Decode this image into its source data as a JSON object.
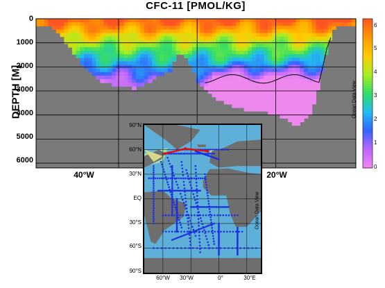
{
  "chart_data": [
    {
      "type": "heatmap",
      "title": "CFC-11 [PMOL/KG]",
      "ylabel": "DEPTH [M]",
      "xlabel": "",
      "y_ticks": [
        "0",
        "1000",
        "2000",
        "3000",
        "4000",
        "5000",
        "6000"
      ],
      "ylim": [
        6200,
        0
      ],
      "x_ticks": [
        "40°W",
        "20°W"
      ],
      "colorbar": {
        "ticks": [
          "0",
          "1",
          "2",
          "3",
          "4",
          "5",
          "6"
        ],
        "range": [
          0,
          6.5
        ],
        "credit": "Ocean Data View",
        "colors": [
          "#ee88ee",
          "#bb66ff",
          "#3366ff",
          "#22bbee",
          "#33dd66",
          "#aaee22",
          "#ffcc00",
          "#ff9900",
          "#ff5522"
        ]
      },
      "background_color": "#7a7a7a",
      "contour_level": 1.0,
      "seafloor_depth_m": [
        [
          -50.0,
          300
        ],
        [
          -48.0,
          380
        ],
        [
          -46.5,
          1100
        ],
        [
          -45.0,
          1750
        ],
        [
          -43.5,
          2300
        ],
        [
          -42.0,
          2650
        ],
        [
          -40.0,
          2800
        ],
        [
          -38.0,
          2880
        ],
        [
          -36.5,
          2700
        ],
        [
          -35.5,
          2500
        ],
        [
          -34.5,
          2300
        ],
        [
          -33.5,
          2200
        ],
        [
          -32.5,
          1400
        ],
        [
          -31.5,
          1600
        ],
        [
          -30.5,
          2200
        ],
        [
          -29.5,
          2850
        ],
        [
          -28.5,
          3050
        ],
        [
          -27.5,
          3300
        ],
        [
          -26.5,
          3500
        ],
        [
          -25.5,
          3650
        ],
        [
          -24.5,
          3750
        ],
        [
          -23.0,
          3850
        ],
        [
          -21.5,
          3900
        ],
        [
          -20.0,
          3950
        ],
        [
          -18.5,
          4200
        ],
        [
          -17.5,
          4450
        ],
        [
          -16.5,
          4300
        ],
        [
          -15.5,
          3900
        ],
        [
          -14.5,
          2800
        ],
        [
          -13.5,
          1300
        ],
        [
          -12.5,
          400
        ],
        [
          -11.5,
          250
        ],
        [
          -10.0,
          250
        ]
      ]
    },
    {
      "type": "scatter",
      "credit": "Ocean Data View",
      "lat_ticks": [
        "90°N",
        "60°N",
        "30°N",
        "EQ",
        "30°S",
        "60°S",
        "90°S"
      ],
      "lon_ticks": [
        "60°W",
        "30°W",
        "0°",
        "30°E"
      ],
      "station_color": "#1b2fe0",
      "section_color": "#e01010",
      "section_line": [
        [
          -58,
          55
        ],
        [
          -36,
          61
        ],
        [
          -12,
          58
        ]
      ]
    }
  ]
}
